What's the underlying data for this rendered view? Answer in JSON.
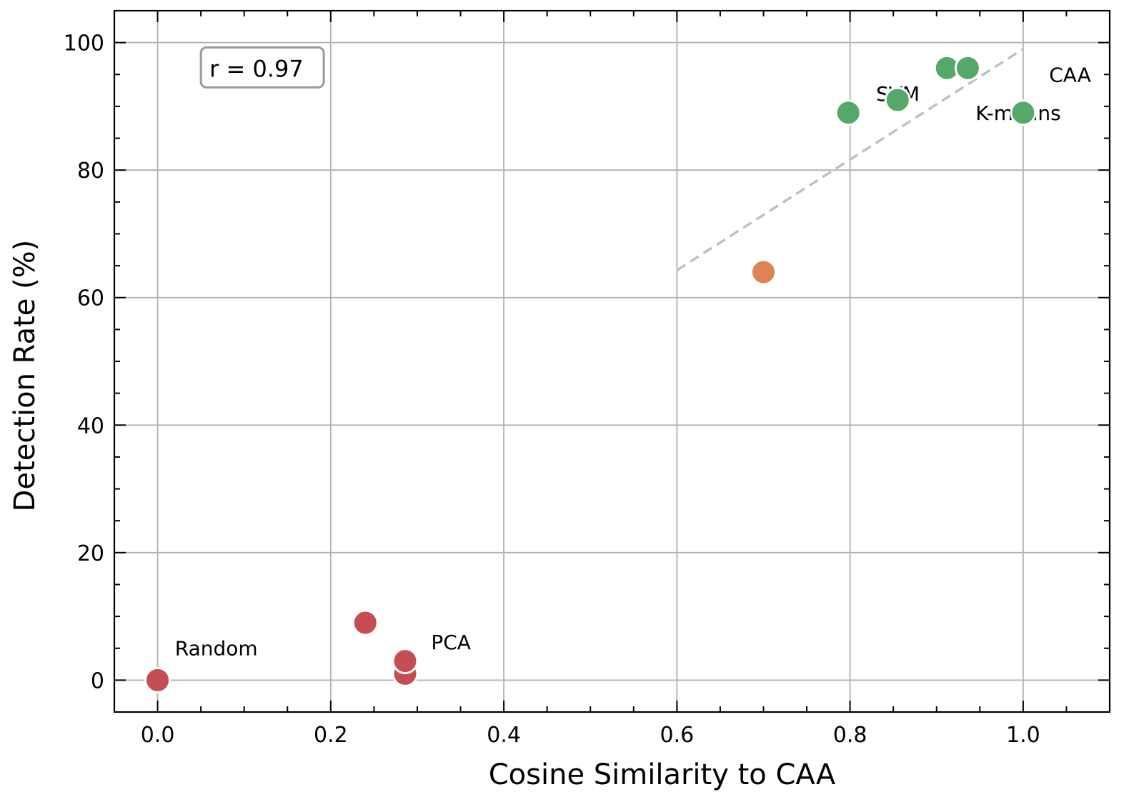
{
  "chart_data": {
    "type": "scatter",
    "title": "",
    "xlabel": "Cosine Similarity to CAA",
    "ylabel": "Detection Rate (%)",
    "xlim": [
      -0.05,
      1.1
    ],
    "ylim": [
      -5,
      105
    ],
    "xticks": [
      0.0,
      0.2,
      0.4,
      0.6,
      0.8,
      1.0
    ],
    "xtick_labels": [
      "0.0",
      "0.2",
      "0.4",
      "0.6",
      "0.8",
      "1.0"
    ],
    "yticks": [
      0,
      20,
      40,
      60,
      80,
      100
    ],
    "ytick_labels": [
      "0",
      "20",
      "40",
      "60",
      "80",
      "100"
    ],
    "x_minor_step": 0.05,
    "y_minor_step": 5,
    "grid": true,
    "ticks_direction": "in",
    "ticks_on_all_sides": true,
    "colors": {
      "low": "#c44e52",
      "mid": "#dd8452",
      "high": "#55a868",
      "trendline": "#c0c0c0",
      "grid": "#b0b0b0",
      "annotation_border": "#999999"
    },
    "points": [
      {
        "x": 0.0,
        "y": 0,
        "group": "low",
        "label": "Random"
      },
      {
        "x": 0.24,
        "y": 9,
        "group": "low",
        "label": ""
      },
      {
        "x": 0.286,
        "y": 1,
        "group": "low",
        "label": ""
      },
      {
        "x": 0.286,
        "y": 3,
        "group": "low",
        "label": "PCA"
      },
      {
        "x": 0.7,
        "y": 64,
        "group": "mid",
        "label": ""
      },
      {
        "x": 0.798,
        "y": 89,
        "group": "high",
        "label": ""
      },
      {
        "x": 0.855,
        "y": 91,
        "group": "high",
        "label": "SVM"
      },
      {
        "x": 0.912,
        "y": 96,
        "group": "high",
        "label": ""
      },
      {
        "x": 0.936,
        "y": 96,
        "group": "high",
        "label": ""
      },
      {
        "x": 1.0,
        "y": 89,
        "group": "high",
        "label": "K-means"
      }
    ],
    "text_labels": [
      {
        "text": "Random",
        "x": 0.02,
        "y": 5
      },
      {
        "text": "PCA",
        "x": 0.316,
        "y": 6
      },
      {
        "text": "SVM",
        "x": 0.83,
        "y": 92
      },
      {
        "text": "CAA",
        "x": 1.03,
        "y": 95
      },
      {
        "text": "K-means",
        "x": 0.945,
        "y": 89
      }
    ],
    "trendline": {
      "x": [
        0.6,
        1.0
      ],
      "y": [
        64.3,
        99
      ],
      "style": "dashed"
    },
    "annotation": {
      "text": "r = 0.97",
      "x": 0.05,
      "y": 96,
      "position": "top-left"
    }
  }
}
